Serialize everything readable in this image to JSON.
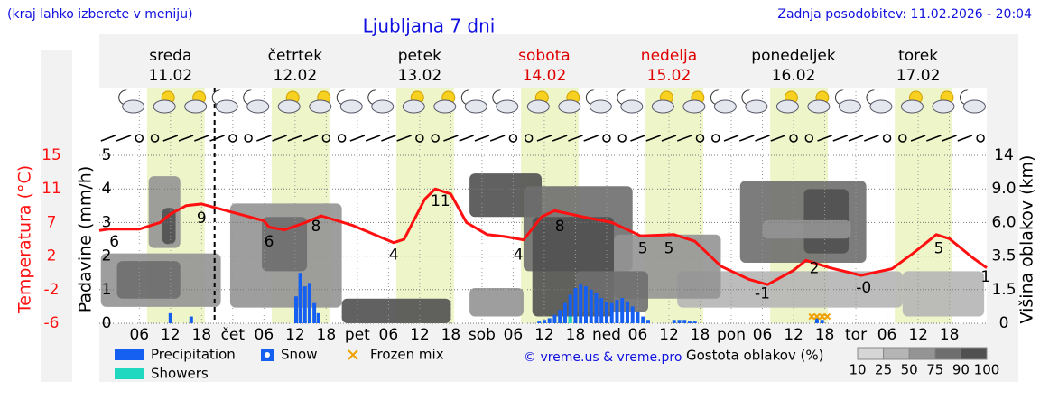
{
  "header": {
    "note": "(kraj lahko izberete v meniju)",
    "updated": "Zadnja posodobitev: 11.02.2026 - 20:04"
  },
  "chart_data": {
    "type": "meteogram",
    "title": "Ljubljana 7 dni",
    "days": [
      {
        "name": "sreda",
        "date": "11.02",
        "color": "#000000"
      },
      {
        "name": "četrtek",
        "date": "12.02",
        "color": "#000000"
      },
      {
        "name": "petek",
        "date": "13.02",
        "color": "#000000"
      },
      {
        "name": "sobota",
        "date": "14.02",
        "color": "#e00000"
      },
      {
        "name": "nedelja",
        "date": "15.02",
        "color": "#e00000"
      },
      {
        "name": "ponedeljek",
        "date": "16.02",
        "color": "#000000"
      },
      {
        "name": "torek",
        "date": "17.02",
        "color": "#000000"
      }
    ],
    "xlim": [
      -1.7,
      169.2
    ],
    "xticks": [
      {
        "value": 6,
        "label": "06"
      },
      12,
      18,
      {
        "value": 24,
        "label": "čet"
      },
      {
        "value": 30,
        "label": "06"
      },
      {
        "value": 36,
        "label": "12"
      },
      {
        "value": 42,
        "label": "18"
      },
      {
        "value": 48,
        "label": "pet"
      },
      {
        "value": 54,
        "label": "06"
      },
      {
        "value": 60,
        "label": "12"
      },
      {
        "value": 66,
        "label": "18"
      },
      {
        "value": 72,
        "label": "sob"
      },
      {
        "value": 78,
        "label": "06"
      },
      {
        "value": 84,
        "label": "12"
      },
      {
        "value": 90,
        "label": "18"
      },
      {
        "value": 96,
        "label": "ned"
      },
      {
        "value": 102,
        "label": "06"
      },
      {
        "value": 108,
        "label": "12"
      },
      {
        "value": 114,
        "label": "18"
      },
      {
        "value": 120,
        "label": "pon"
      },
      {
        "value": 126,
        "label": "06"
      },
      {
        "value": 132,
        "label": "12"
      },
      {
        "value": 138,
        "label": "18"
      },
      {
        "value": 144,
        "label": "tor"
      },
      {
        "value": 150,
        "label": "06"
      },
      {
        "value": 156,
        "label": "12"
      },
      {
        "value": 162,
        "label": "18"
      }
    ],
    "now": 20.5,
    "daylight": [
      7.5,
      18.6
    ],
    "ylabel": "Padavine (mm/h)",
    "ylim": [
      0,
      5
    ],
    "yticks": [
      0,
      1,
      2,
      3,
      4,
      5
    ],
    "grid": true,
    "temperature": {
      "label": "Temperatura (°C)",
      "color": "#ff1010",
      "ticks": [
        -6,
        -2,
        2,
        7,
        11,
        15
      ],
      "x": [
        -1.7,
        0,
        6,
        10,
        12,
        15,
        18,
        24,
        30,
        31,
        34,
        38,
        41,
        47,
        55,
        57,
        61,
        63,
        66,
        69,
        73,
        76.5,
        80,
        83.5,
        86,
        92,
        97,
        102.6,
        109,
        113,
        118,
        123.5,
        127,
        132,
        134.4,
        139,
        145,
        151,
        155,
        159.5,
        162,
        166.5,
        169.2
      ],
      "values": [
        5.8,
        6,
        6,
        7,
        8,
        9,
        9.2,
        8.2,
        7.2,
        6.3,
        5.9,
        7,
        7.8,
        6.6,
        4,
        4.5,
        9.8,
        11,
        10.4,
        7,
        5.2,
        4.9,
        4.4,
        7.7,
        8.4,
        7.6,
        7,
        5,
        5.2,
        4.2,
        0.8,
        -0.8,
        -1.4,
        0.3,
        1.5,
        0.6,
        -0.3,
        0.5,
        2.4,
        5.2,
        4.6,
        1.8,
        0.6
      ]
    },
    "temperature_labels": {
      "x": [
        1.2,
        18,
        31,
        40,
        55,
        64,
        79,
        87,
        103,
        108,
        126,
        136,
        145.5,
        160,
        169
      ],
      "values": [
        6,
        9,
        6,
        8,
        4,
        11,
        4,
        8,
        5,
        5,
        -1,
        2,
        -0.3,
        5,
        1
      ],
      "value_labels": [
        "6",
        "9",
        "6",
        "8",
        "4",
        "11",
        "4",
        "8",
        "5",
        "5",
        "-1",
        "2",
        "-0",
        "5",
        "1"
      ]
    },
    "y2label": "Višina oblakov (km)",
    "y2ticks": [
      0,
      1.5,
      3.5,
      {
        "value": 6,
        "label": "6.0"
      },
      {
        "value": 9,
        "label": "9.0"
      },
      14
    ],
    "series": [
      {
        "name": "Precipitation",
        "color": "#1560f0",
        "x": [
          12,
          16,
          36.2,
          37,
          37.9,
          38.8,
          39.7,
          40.5,
          83,
          84,
          85,
          86,
          87,
          88,
          89,
          90,
          91,
          92,
          93,
          94,
          95,
          96,
          97,
          98,
          99,
          100,
          101,
          102,
          103,
          104,
          109,
          110,
          111,
          112,
          113
        ],
        "values": [
          0.3,
          0.2,
          0.8,
          1.5,
          1.1,
          1.2,
          0.6,
          0.3,
          0.05,
          0.1,
          0.15,
          0.25,
          0.4,
          0.6,
          0.85,
          1.05,
          1.15,
          1.1,
          1.0,
          0.9,
          0.75,
          0.65,
          0.6,
          0.7,
          0.75,
          0.65,
          0.5,
          0.35,
          0.2,
          0.1,
          0.1,
          0.1,
          0.1,
          0.05,
          0.05
        ]
      },
      {
        "name": "Showers",
        "color": "#20d8c0",
        "x": [
          89
        ],
        "values": [
          0.2
        ]
      },
      {
        "name": "Snow",
        "color": "#1560f0",
        "x": [
          136.5,
          137.5
        ],
        "values": [
          0.15,
          0.1
        ]
      },
      {
        "name": "Frozen mix",
        "color": "#f0a000",
        "x": [
          135.5,
          136.5,
          137.5,
          138.5
        ],
        "values": [
          0.2,
          0.2,
          0.2,
          0.2
        ]
      }
    ],
    "clouds": {
      "label": "Gostota oblakov (%)",
      "levels": [
        10,
        25,
        50,
        75,
        90,
        100
      ],
      "colors": [
        "#d6d6d6",
        "#b5b5b5",
        "#949494",
        "#6e6e6e",
        "#505050"
      ],
      "blocks": [
        [
          109.6,
          153,
          0.7,
          2.6,
          25
        ],
        [
          153,
          168.7,
          0.3,
          2.6,
          25
        ],
        [
          -1.4,
          21.7,
          0.73,
          3.7,
          50
        ],
        [
          1.7,
          13.9,
          1.1,
          3.2,
          75
        ],
        [
          7.8,
          13.9,
          4.1,
          10.9,
          50
        ],
        [
          10.4,
          13,
          4.4,
          7.3,
          90
        ],
        [
          23.5,
          45,
          0.7,
          7.7,
          50
        ],
        [
          29.6,
          38.3,
          2.6,
          6.5,
          75
        ],
        [
          45,
          66,
          0,
          1.1,
          90
        ],
        [
          69.6,
          80,
          0.3,
          1.6,
          50
        ],
        [
          69.6,
          83.5,
          6.5,
          11.3,
          90
        ],
        [
          80,
          101,
          2.6,
          9.4,
          75
        ],
        [
          81.7,
          97.4,
          0.3,
          6.5,
          90
        ],
        [
          97.4,
          118,
          1.1,
          5.1,
          50
        ],
        [
          90,
          104,
          0.5,
          2.6,
          75
        ],
        [
          121.7,
          146,
          3.1,
          10.2,
          75
        ],
        [
          134,
          142.6,
          3.7,
          9,
          90
        ],
        [
          126,
          143,
          4.8,
          6.2,
          50
        ]
      ]
    },
    "copyright": "© vreme.us & vreme.pro"
  }
}
